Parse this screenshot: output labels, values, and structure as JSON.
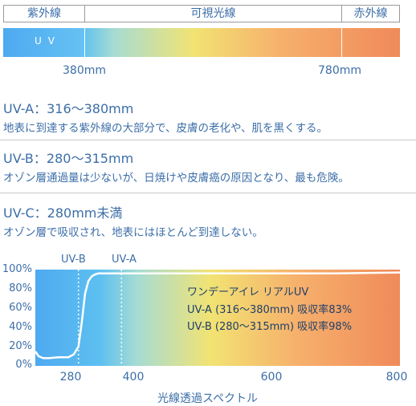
{
  "bands": {
    "purple_outside": "紫外線",
    "visible": "可視光線",
    "infrared": "赤外線",
    "uv_label": "UV",
    "wavelength_start": "380mm",
    "wavelength_end": "780mm"
  },
  "sections": [
    {
      "title": "UV-A：316〜380mm",
      "desc": "地表に到達する紫外線の大部分で、皮膚の老化や、肌を黒くする。"
    },
    {
      "title": "UV-B：280〜315mm",
      "desc": "オゾン層通過量は少ないが、日焼けや皮膚癌の原因となり、最も危険。"
    },
    {
      "title": "UV-C：280mm未満",
      "desc": "オゾン層で吸収され、地表にはほとんど到達しない。"
    }
  ],
  "chart": {
    "uvb_marker": "UV-B",
    "uva_marker": "UV-A",
    "legend": {
      "product": "ワンデーアイレ リアルUV",
      "line1": "UV-A (316〜380mm) 吸収率83%",
      "line2": "UV-B (280〜315mm) 吸収率98%"
    },
    "x_title": "光線透過スペクトル",
    "colors": {
      "curve": "#ffffff",
      "grad_start": "#4eaaf0",
      "grad_end": "#f08a5a"
    }
  },
  "chart_data": {
    "type": "line",
    "title": "",
    "xlabel": "光線透過スペクトル",
    "ylabel": "",
    "xlim": [
      250,
      800
    ],
    "ylim": [
      0,
      100
    ],
    "x_ticks": [
      "280",
      "400",
      "600",
      "800"
    ],
    "y_ticks": [
      "100%",
      "80%",
      "60%",
      "40%",
      "20%",
      "0%"
    ],
    "grid": false,
    "series": [
      {
        "x": [
          250,
          255,
          262,
          270,
          285,
          300,
          308,
          315,
          320,
          325,
          330,
          335,
          340,
          345,
          350,
          360,
          380,
          400,
          500,
          600,
          700,
          800
        ],
        "y": [
          15,
          10,
          8,
          8,
          9,
          9,
          12,
          20,
          45,
          75,
          88,
          93,
          95,
          96,
          96,
          96,
          96,
          96,
          96,
          96,
          96,
          97
        ]
      }
    ],
    "markers": [
      {
        "label": "UV-B",
        "x": 315
      },
      {
        "label": "UV-A",
        "x": 380
      }
    ]
  }
}
